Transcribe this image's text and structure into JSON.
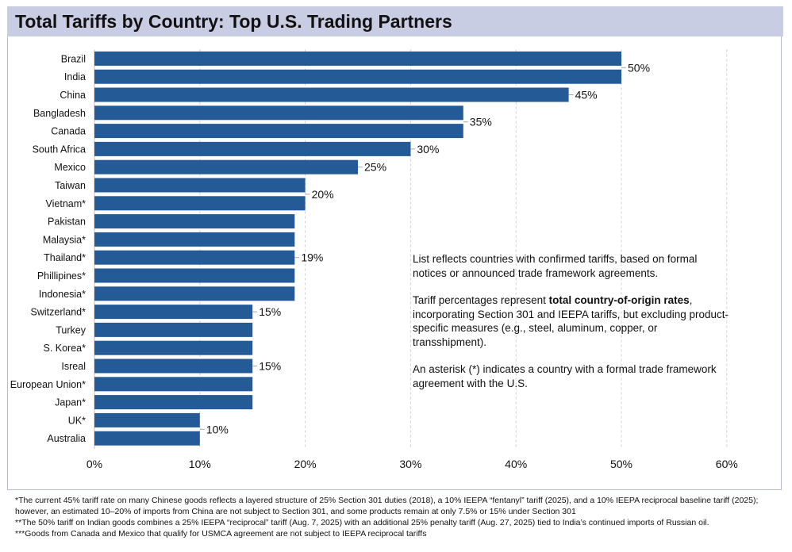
{
  "title": "Total Tariffs by Country: Top U.S. Trading Partners",
  "chart_data": {
    "type": "bar",
    "orientation": "horizontal",
    "title": "Total Tariffs by Country: Top U.S. Trading Partners",
    "xlabel": "",
    "ylabel": "",
    "xlim": [
      0,
      60
    ],
    "xticks": [
      "0%",
      "10%",
      "20%",
      "30%",
      "40%",
      "50%",
      "60%"
    ],
    "grid": "vertical dashed",
    "bar_color": "#245b96",
    "categories": [
      "Brazil",
      "India",
      "China",
      "Bangladesh",
      "Canada",
      "South Africa",
      "Mexico",
      "Taiwan",
      "Vietnam*",
      "Pakistan",
      "Malaysia*",
      "Thailand*",
      "Phillipines*",
      "Indonesia*",
      "Switzerland*",
      "Turkey",
      "S. Korea*",
      "Isreal",
      "European Union*",
      "Japan*",
      "UK*",
      "Australia"
    ],
    "values": [
      50,
      50,
      45,
      35,
      35,
      30,
      25,
      20,
      20,
      19,
      19,
      19,
      19,
      19,
      15,
      15,
      15,
      15,
      15,
      15,
      10,
      10
    ],
    "data_labels": [
      {
        "text": "50%",
        "row": 0.5
      },
      {
        "text": "45%",
        "row": 2
      },
      {
        "text": "35%",
        "row": 3.5
      },
      {
        "text": "30%",
        "row": 5
      },
      {
        "text": "25%",
        "row": 6
      },
      {
        "text": "20%",
        "row": 7.5
      },
      {
        "text": "19%",
        "row": 11
      },
      {
        "text": "15%",
        "row": 14
      },
      {
        "text": "15%",
        "row": 17
      },
      {
        "text": "10%",
        "row": 20.5
      }
    ]
  },
  "notes": {
    "p1": "List reflects countries with confirmed tariffs, based on formal notices or announced trade framework agreements.",
    "p2_before": "Tariff percentages represent ",
    "p2_bold": "total country-of-origin rates",
    "p2_after": ", incorporating Section 301 and IEEPA tariffs, but excluding product-specific measures (e.g., steel, aluminum, copper, or transshipment).",
    "p3": "An asterisk (*) indicates a country with a formal trade framework agreement with the U.S."
  },
  "footnotes": {
    "f1": "*The current 45% tariff rate on many Chinese goods reflects a layered structure of 25% Section 301 duties (2018), a 10% IEEPA “fentanyl” tariff (2025), and a 10% IEEPA reciprocal baseline tariff (2025); however, an estimated 10–20% of imports from China are not subject to Section 301, and some products remain at only 7.5% or 15% under Section 301",
    "f2": "**The 50% tariff on Indian goods combines a 25% IEEPA “reciprocal” tariff (Aug. 7, 2025) with an additional 25% penalty tariff (Aug. 27, 2025) tied to India’s continued imports of Russian oil.",
    "f3": "***Goods from Canada and Mexico that qualify for USMCA agreement are not subject to IEEPA reciprocal tariffs"
  }
}
